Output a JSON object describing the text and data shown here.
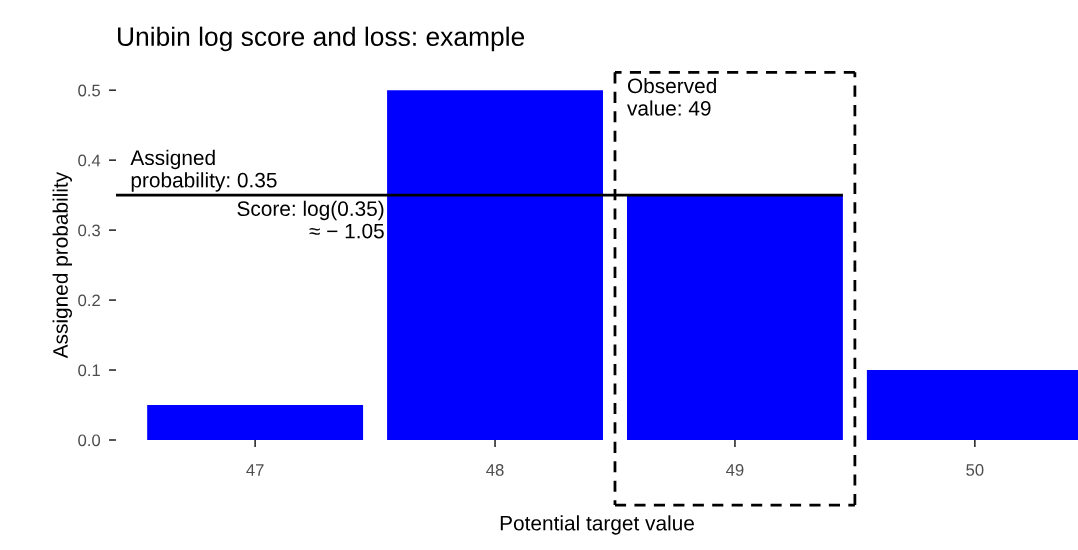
{
  "chart_data": {
    "type": "bar",
    "title": "Unibin log score and loss: example",
    "xlabel": "Potential target value",
    "ylabel": "Assigned probability",
    "categories": [
      "47",
      "48",
      "49",
      "50"
    ],
    "values": [
      0.05,
      0.5,
      0.35,
      0.1
    ],
    "color": "#0000ff",
    "ylim": [
      0,
      0.5
    ],
    "yticks": [
      {
        "value": 0.0,
        "label": "0.0"
      },
      0.1,
      0.2,
      0.3,
      0.4,
      0.5
    ],
    "grid": false,
    "ref_lines": [
      {
        "axis": "y",
        "value": 0.35,
        "label": "Assigned\nprobability: 0.35",
        "color": "#000000",
        "line_style": "solid"
      }
    ],
    "annotations": [
      "Score: log(0.35)\n≈ − 1.05",
      "Observed\nvalue: 49"
    ]
  }
}
